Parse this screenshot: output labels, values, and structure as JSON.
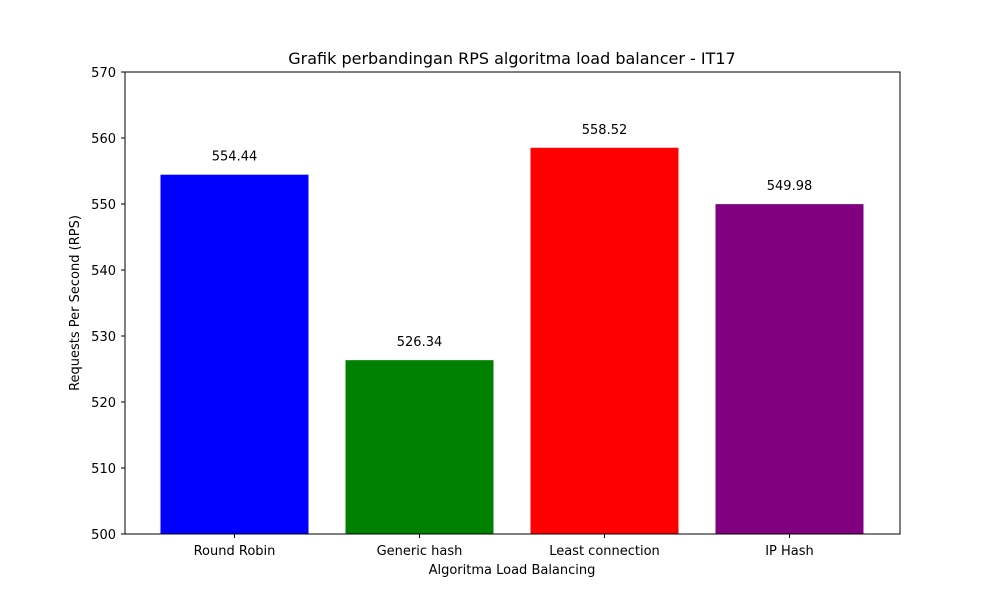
{
  "chart_data": {
    "type": "bar",
    "title": "Grafik perbandingan RPS algoritma load balancer - IT17",
    "xlabel": "Algoritma Load Balancing",
    "ylabel": "Requests Per Second (RPS)",
    "categories": [
      "Round Robin",
      "Generic hash",
      "Least connection",
      "IP Hash"
    ],
    "values": [
      554.44,
      526.34,
      558.52,
      549.98
    ],
    "value_labels": [
      "554.44",
      "526.34",
      "558.52",
      "549.98"
    ],
    "colors": [
      "#0000ff",
      "#008000",
      "#ff0000",
      "#800080"
    ],
    "ylim": [
      500,
      570
    ],
    "yticks": [
      500,
      510,
      520,
      530,
      540,
      550,
      560,
      570
    ],
    "grid": false,
    "legend": "none"
  }
}
